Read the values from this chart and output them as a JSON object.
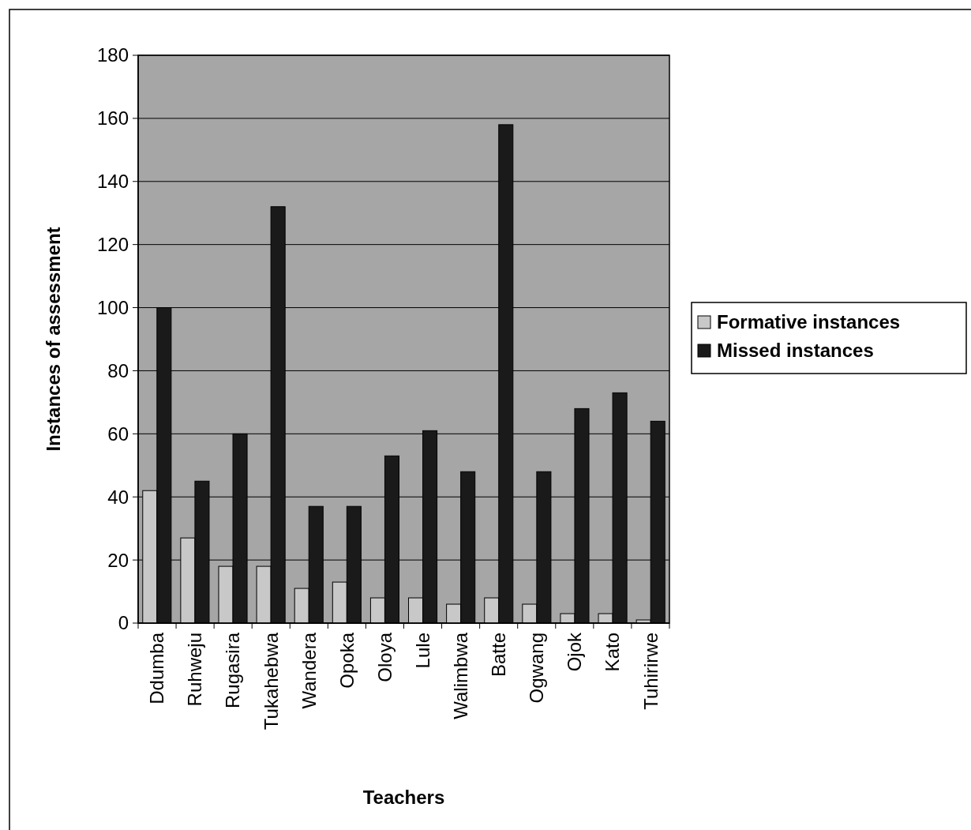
{
  "chart_data": {
    "type": "bar",
    "xlabel": "Teachers",
    "ylabel": "Instances of assessment",
    "categories": [
      "Ddumba",
      "Ruhweju",
      "Rugasira",
      "Tukahebwa",
      "Wandera",
      "Opoka",
      "Oloya",
      "Lule",
      "Walimbwa",
      "Batte",
      "Ogwang",
      "Ojok",
      "Kato",
      "Tuhirirwe"
    ],
    "series": [
      {
        "name": "Formative instances",
        "color": "#c8c8c8",
        "values": [
          42,
          27,
          18,
          18,
          11,
          13,
          8,
          8,
          6,
          8,
          6,
          3,
          3,
          1
        ]
      },
      {
        "name": "Missed instances",
        "color": "#1a1a1a",
        "values": [
          100,
          45,
          60,
          132,
          37,
          37,
          53,
          61,
          48,
          158,
          48,
          68,
          73,
          64
        ]
      }
    ],
    "ylim": [
      0,
      180
    ],
    "yticks": [
      0,
      20,
      40,
      60,
      80,
      100,
      120,
      140,
      160,
      180
    ],
    "grid": "y",
    "legend": "right"
  }
}
